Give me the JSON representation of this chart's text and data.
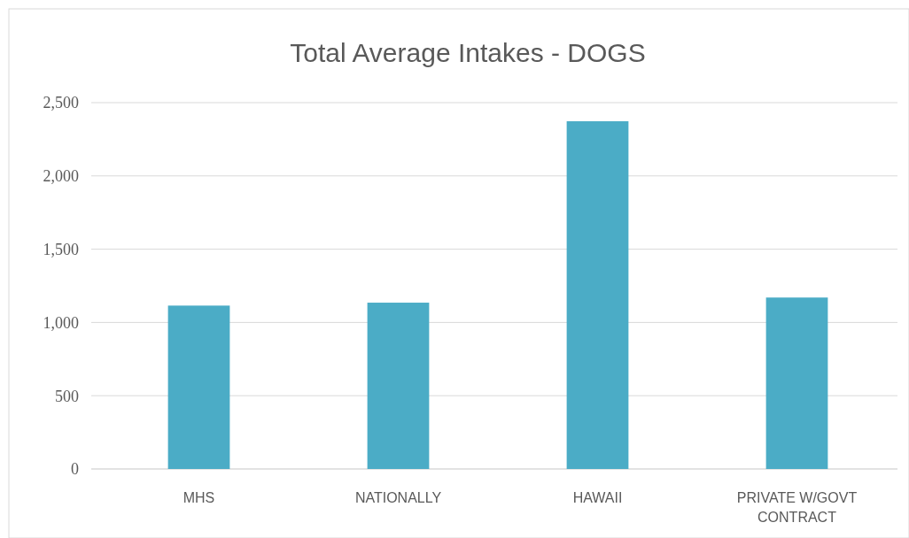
{
  "chart_data": {
    "type": "bar",
    "title": "Total Average Intakes - DOGS",
    "categories": [
      "MHS",
      "NATIONALLY",
      "HAWAII",
      "PRIVATE W/GOVT CONTRACT"
    ],
    "values": [
      1115,
      1135,
      2373,
      1170
    ],
    "color": "#4bacc6",
    "ylim": [
      0,
      2500
    ],
    "yticks": [
      {
        "value": 0,
        "label": "0"
      },
      {
        "value": 500,
        "label": "500"
      },
      {
        "value": 1000,
        "label": "1,000"
      },
      {
        "value": 1500,
        "label": "1,500"
      },
      {
        "value": 2000,
        "label": "2,000"
      },
      {
        "value": 2500,
        "label": "2,500"
      }
    ],
    "grid": "y"
  }
}
